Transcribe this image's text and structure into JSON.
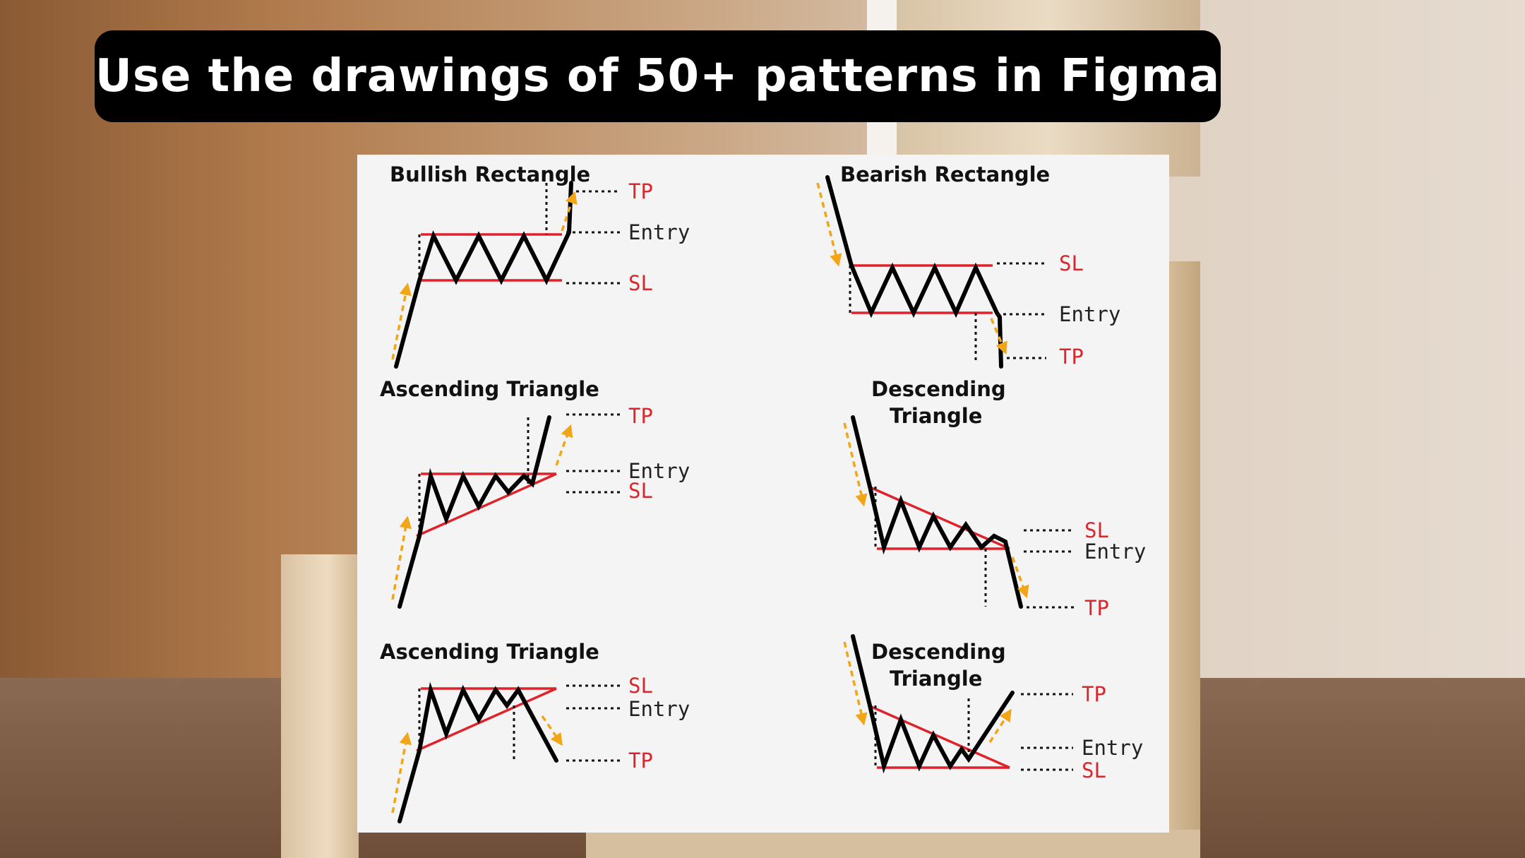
{
  "header": {
    "title": "Use the drawings of 50+ patterns in Figma"
  },
  "colors": {
    "title_bg": "#000000",
    "title_text": "#ffffff",
    "boundary_line": "#e0222a",
    "price_line": "#000000",
    "direction_arrow": "#f2a515",
    "label_red": "#d9272e"
  },
  "patterns": [
    {
      "title_lines": [
        "Bullish Rectangle"
      ],
      "labels": [
        "TP",
        "Entry",
        "SL"
      ]
    },
    {
      "title_lines": [
        "Bearish Rectangle"
      ],
      "labels": [
        "SL",
        "Entry",
        "TP"
      ]
    },
    {
      "title_lines": [
        "Ascending Triangle"
      ],
      "labels": [
        "TP",
        "Entry",
        "SL"
      ]
    },
    {
      "title_lines": [
        "Descending",
        "Triangle"
      ],
      "labels": [
        "SL",
        "Entry",
        "TP"
      ]
    },
    {
      "title_lines": [
        "Ascending Triangle"
      ],
      "labels": [
        "SL",
        "Entry",
        "TP"
      ]
    },
    {
      "title_lines": [
        "Descending",
        "Triangle"
      ],
      "labels": [
        "TP",
        "Entry",
        "SL"
      ]
    }
  ]
}
